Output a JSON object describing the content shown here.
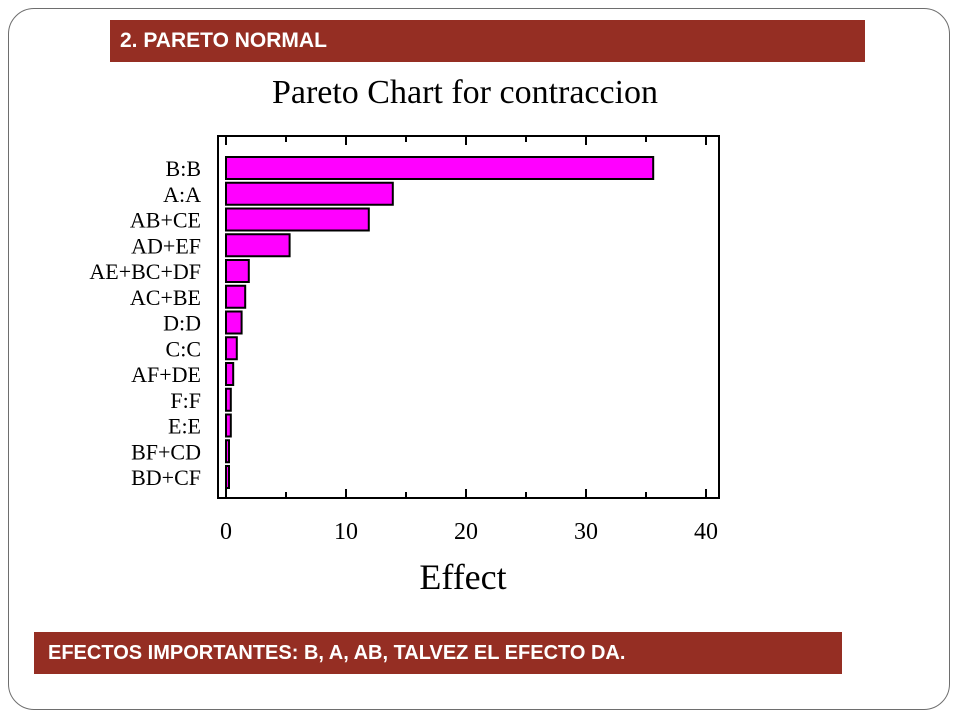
{
  "header": {
    "section_label": "2. PARETO NORMAL"
  },
  "footer": {
    "note": "EFECTOS IMPORTANTES: B, A, AB, TALVEZ  EL EFECTO DA."
  },
  "chart_data": {
    "type": "bar",
    "orientation": "horizontal",
    "title": "Pareto Chart for contraccion",
    "xlabel": "Effect",
    "ylabel": "",
    "xlim": [
      0,
      40
    ],
    "xticks": [
      0,
      10,
      20,
      30,
      40
    ],
    "categories": [
      "B:B",
      "A:A",
      "AB+CE",
      "AD+EF",
      "AE+BC+DF",
      "AC+BE",
      "D:D",
      "C:C",
      "AF+DE",
      "F:F",
      "E:E",
      "BF+CD",
      "BD+CF"
    ],
    "values": [
      35.6,
      13.9,
      11.9,
      5.3,
      1.9,
      1.6,
      1.3,
      0.9,
      0.6,
      0.4,
      0.4,
      0.1,
      0.1
    ],
    "bar_color": "#ff00ff",
    "edge_color": "#000000",
    "grid": false
  }
}
